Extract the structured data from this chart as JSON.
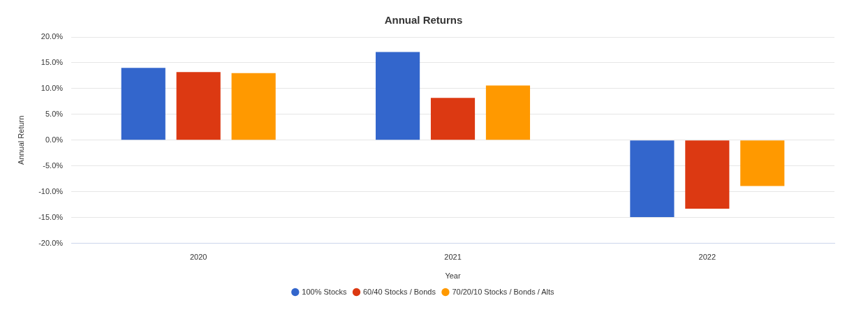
{
  "chart_data": {
    "type": "bar",
    "title": "Annual Returns",
    "xlabel": "Year",
    "ylabel": "Annual Return",
    "categories": [
      "2020",
      "2021",
      "2022"
    ],
    "series": [
      {
        "name": "100% Stocks",
        "color": "#3366cc",
        "values": [
          14.0,
          17.1,
          -14.9
        ]
      },
      {
        "name": "60/40 Stocks / Bonds",
        "color": "#dc3912",
        "values": [
          13.2,
          8.2,
          -13.3
        ]
      },
      {
        "name": "70/20/10 Stocks / Bonds / Alts",
        "color": "#ff9900",
        "values": [
          13.0,
          10.6,
          -8.9
        ]
      }
    ],
    "ylim": [
      -20,
      20
    ],
    "yticks": [
      {
        "value": -20,
        "label": "-20.0%"
      },
      {
        "value": -15,
        "label": "-15.0%"
      },
      {
        "value": -10,
        "label": "-10.0%"
      },
      {
        "value": -5,
        "label": "-5.0%"
      },
      {
        "value": 0,
        "label": "0.0%"
      },
      {
        "value": 5,
        "label": "5.0%"
      },
      {
        "value": 10,
        "label": "10.0%"
      },
      {
        "value": 15,
        "label": "15.0%"
      },
      {
        "value": 20,
        "label": "20.0%"
      }
    ],
    "grid": "y",
    "legend": "bottom"
  }
}
